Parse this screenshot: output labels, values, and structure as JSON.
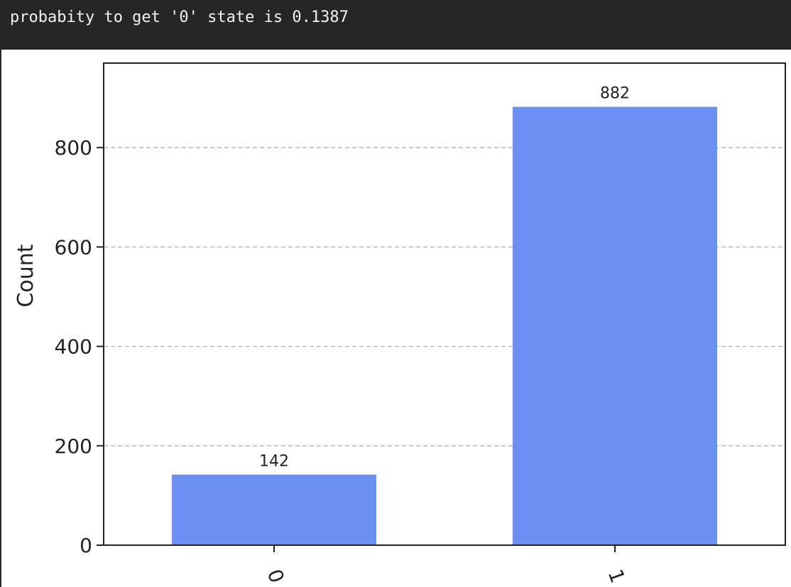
{
  "cell_output": {
    "text": "probabity to get '0' state is 0.1387"
  },
  "colors": {
    "bar": "#6b8ff3",
    "grid": "#b0b0b0",
    "axis": "#222222",
    "output_bg": "#262626",
    "output_text": "#f2f2f2"
  },
  "chart_data": {
    "type": "bar",
    "categories": [
      "0",
      "1"
    ],
    "values": [
      142,
      882
    ],
    "data_labels": [
      "142",
      "882"
    ],
    "title": "",
    "xlabel": "",
    "ylabel": "Count",
    "ylim": [
      0,
      970
    ],
    "yticks": [
      0,
      200,
      400,
      600,
      800
    ],
    "ytick_labels": [
      "0",
      "200",
      "400",
      "600",
      "800"
    ],
    "grid": "horizontal dashed",
    "x_tick_rotation": "70 degrees"
  }
}
